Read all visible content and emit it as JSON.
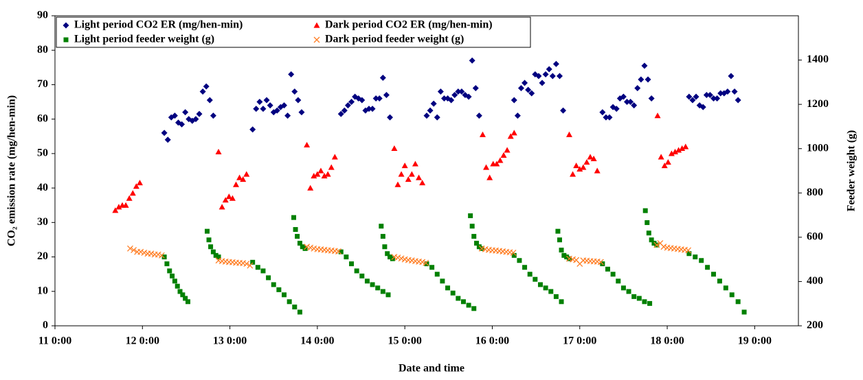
{
  "chart_data": {
    "type": "scatter",
    "xlabel": "Date and time",
    "ylabel": "CO₂ emission rate (mg/hen-min)",
    "y2label": "Feeder weight (g)",
    "xlim": [
      11,
      19.5
    ],
    "xticks": [
      {
        "value": 11,
        "label": "11 0:00"
      },
      {
        "value": 12,
        "label": "12 0:00"
      },
      {
        "value": 13,
        "label": "13 0:00"
      },
      {
        "value": 14,
        "label": "14 0:00"
      },
      {
        "value": 15,
        "label": "15 0:00"
      },
      {
        "value": 16,
        "label": "16 0:00"
      },
      {
        "value": 17,
        "label": "17 0:00"
      },
      {
        "value": 18,
        "label": "18 0:00"
      },
      {
        "value": 19,
        "label": "19 0:00"
      }
    ],
    "ylim": [
      0,
      90
    ],
    "yticks": [
      0,
      10,
      20,
      30,
      40,
      50,
      60,
      70,
      80,
      90
    ],
    "y2lim": [
      200,
      1600
    ],
    "y2ticks": [
      200,
      400,
      600,
      800,
      1000,
      1200,
      1400
    ],
    "grid": true,
    "legend": "upper left",
    "series": [
      {
        "name": "Light period CO2 ER (mg/hen-min)",
        "color": "#000080",
        "marker": "diamond",
        "x": [
          12.25,
          12.29,
          12.33,
          12.37,
          12.41,
          12.45,
          12.49,
          12.53,
          12.57,
          12.61,
          12.65,
          12.69,
          12.73,
          12.77,
          12.81,
          13.26,
          13.3,
          13.34,
          13.38,
          13.42,
          13.46,
          13.5,
          13.54,
          13.58,
          13.62,
          13.66,
          13.7,
          13.74,
          13.78,
          13.82,
          14.27,
          14.31,
          14.35,
          14.39,
          14.43,
          14.47,
          14.51,
          14.55,
          14.59,
          14.63,
          14.67,
          14.71,
          14.75,
          14.79,
          14.83,
          15.25,
          15.29,
          15.33,
          15.37,
          15.41,
          15.45,
          15.49,
          15.53,
          15.57,
          15.61,
          15.65,
          15.69,
          15.73,
          15.77,
          15.81,
          15.85,
          16.25,
          16.29,
          16.33,
          16.37,
          16.41,
          16.45,
          16.49,
          16.53,
          16.57,
          16.61,
          16.65,
          16.69,
          16.73,
          16.77,
          16.81,
          17.26,
          17.3,
          17.34,
          17.38,
          17.42,
          17.46,
          17.5,
          17.54,
          17.58,
          17.62,
          17.66,
          17.7,
          17.74,
          17.78,
          17.82,
          18.25,
          18.29,
          18.33,
          18.37,
          18.41,
          18.45,
          18.49,
          18.53,
          18.57,
          18.61,
          18.65,
          18.69,
          18.73,
          18.77,
          18.81
        ],
        "values": [
          56,
          54,
          60.5,
          61,
          59,
          58.5,
          62,
          60,
          59.5,
          60,
          61.5,
          68,
          69.5,
          65.5,
          61,
          57,
          63,
          65,
          63,
          65.5,
          64,
          62,
          62.5,
          63.5,
          64,
          61,
          73,
          68,
          65.5,
          62,
          61.5,
          62.5,
          64,
          65,
          66.5,
          66,
          65.5,
          62.5,
          63,
          63,
          66,
          66,
          72,
          67,
          60.5,
          61,
          62.5,
          64.5,
          60.5,
          68,
          66,
          66,
          65.5,
          67,
          68,
          68,
          67,
          66.5,
          77,
          69,
          61,
          65.5,
          61,
          69,
          70.5,
          68.5,
          67.5,
          73,
          72.5,
          70.5,
          73,
          74.5,
          72.5,
          76,
          72.5,
          62.5,
          62,
          60.5,
          60.5,
          63.5,
          63,
          66,
          66.5,
          65,
          65,
          64,
          69,
          71.5,
          75.5,
          71.5,
          66,
          66.5,
          65.5,
          66.5,
          64,
          63.5,
          67,
          67,
          66,
          66,
          67.5,
          67.5,
          68,
          72.5,
          68,
          65.5
        ]
      },
      {
        "name": "Dark period CO2 ER (mg/hen-min)",
        "color": "#ff0000",
        "marker": "triangle",
        "x": [
          11.69,
          11.73,
          11.77,
          11.81,
          11.85,
          11.89,
          11.93,
          11.97,
          12.87,
          12.91,
          12.95,
          12.99,
          13.03,
          13.07,
          13.11,
          13.15,
          13.19,
          13.88,
          13.92,
          13.96,
          14.0,
          14.04,
          14.08,
          14.12,
          14.16,
          14.2,
          14.88,
          14.92,
          14.96,
          15.0,
          15.04,
          15.08,
          15.12,
          15.16,
          15.2,
          15.89,
          15.93,
          15.97,
          16.01,
          16.05,
          16.09,
          16.13,
          16.17,
          16.21,
          16.25,
          16.88,
          16.92,
          16.96,
          17.0,
          17.04,
          17.08,
          17.12,
          17.16,
          17.2,
          17.89,
          17.93,
          17.97,
          18.01,
          18.05,
          18.09,
          18.13,
          18.17,
          18.21
        ],
        "values": [
          33.5,
          34.5,
          35,
          35,
          37,
          38.5,
          40.5,
          41.5,
          50.5,
          34.5,
          36.5,
          37.5,
          37,
          41,
          43,
          42.5,
          44,
          52.5,
          40,
          43.5,
          44,
          45,
          43.5,
          44,
          46,
          49,
          51.5,
          41,
          44,
          46.5,
          42.5,
          44,
          47,
          43,
          41.5,
          55.5,
          46,
          43,
          47,
          47,
          48,
          49.5,
          51,
          55,
          56,
          55.5,
          44,
          46.5,
          45.5,
          46,
          47.5,
          49,
          48.5,
          45,
          61,
          49,
          46.5,
          47.5,
          50,
          50.5,
          51,
          51.5,
          52
        ]
      },
      {
        "name": "Light period feeder weight (g)",
        "color": "#008000",
        "marker": "square",
        "axis": "y2",
        "x": [
          12.25,
          12.28,
          12.31,
          12.34,
          12.37,
          12.4,
          12.43,
          12.46,
          12.49,
          12.52,
          12.74,
          12.76,
          12.78,
          12.81,
          12.84,
          12.87,
          13.26,
          13.32,
          13.38,
          13.44,
          13.5,
          13.56,
          13.62,
          13.68,
          13.74,
          13.8,
          13.73,
          13.75,
          13.77,
          13.8,
          13.83,
          13.86,
          14.27,
          14.33,
          14.39,
          14.45,
          14.51,
          14.57,
          14.63,
          14.69,
          14.75,
          14.81,
          14.73,
          14.75,
          14.77,
          14.8,
          14.83,
          14.86,
          15.25,
          15.31,
          15.37,
          15.43,
          15.49,
          15.55,
          15.61,
          15.67,
          15.73,
          15.79,
          15.75,
          15.77,
          15.79,
          15.82,
          15.85,
          15.88,
          16.25,
          16.31,
          16.37,
          16.43,
          16.49,
          16.55,
          16.61,
          16.67,
          16.73,
          16.79,
          16.75,
          16.77,
          16.79,
          16.82,
          16.85,
          16.88,
          17.26,
          17.32,
          17.38,
          17.44,
          17.5,
          17.56,
          17.62,
          17.68,
          17.74,
          17.8,
          17.75,
          17.77,
          17.79,
          17.82,
          17.85,
          17.88,
          18.25,
          18.32,
          18.39,
          18.46,
          18.53,
          18.6,
          18.67,
          18.74,
          18.81,
          18.88
        ],
        "values": [
          511,
          480,
          448,
          425,
          402,
          379,
          355,
          340,
          324,
          309,
          627,
          588,
          557,
          534,
          518,
          511,
          487,
          464,
          448,
          417,
          386,
          363,
          340,
          309,
          285,
          262,
          689,
          635,
          604,
          573,
          557,
          549,
          534,
          511,
          480,
          448,
          425,
          402,
          386,
          371,
          355,
          340,
          650,
          604,
          557,
          526,
          511,
          503,
          480,
          464,
          433,
          402,
          371,
          348,
          324,
          309,
          293,
          278,
          697,
          650,
          604,
          573,
          557,
          549,
          518,
          495,
          464,
          433,
          410,
          386,
          371,
          355,
          332,
          309,
          627,
          588,
          542,
          518,
          511,
          503,
          480,
          456,
          433,
          402,
          371,
          355,
          332,
          324,
          309,
          301,
          720,
          666,
          619,
          588,
          573,
          565,
          526,
          511,
          495,
          464,
          433,
          402,
          371,
          340,
          309,
          262
        ]
      },
      {
        "name": "Dark period feeder weight (g)",
        "color": "#ff7f27",
        "marker": "x",
        "axis": "y2",
        "x": [
          11.86,
          11.9,
          11.94,
          11.98,
          12.02,
          12.06,
          12.1,
          12.14,
          12.18,
          12.22,
          12.87,
          12.91,
          12.95,
          12.99,
          13.03,
          13.07,
          13.11,
          13.15,
          13.19,
          13.23,
          13.88,
          13.92,
          13.96,
          14.0,
          14.04,
          14.08,
          14.12,
          14.16,
          14.2,
          14.24,
          14.88,
          14.92,
          14.96,
          15.0,
          15.04,
          15.08,
          15.12,
          15.16,
          15.2,
          15.24,
          15.88,
          15.92,
          15.96,
          16.0,
          16.04,
          16.08,
          16.12,
          16.16,
          16.2,
          16.24,
          16.88,
          16.92,
          16.96,
          17.0,
          17.04,
          17.08,
          17.12,
          17.16,
          17.2,
          17.24,
          17.88,
          17.92,
          17.96,
          18.0,
          18.04,
          18.08,
          18.12,
          18.16,
          18.2,
          18.24
        ],
        "values": [
          549,
          542,
          534,
          534,
          530,
          526,
          526,
          522,
          522,
          518,
          495,
          492,
          490,
          488,
          487,
          485,
          484,
          483,
          480,
          472,
          557,
          553,
          549,
          546,
          545,
          543,
          541,
          540,
          538,
          536,
          511,
          508,
          504,
          500,
          497,
          495,
          492,
          490,
          488,
          484,
          549,
          546,
          543,
          541,
          540,
          538,
          536,
          534,
          532,
          530,
          503,
          500,
          497,
          480,
          495,
          494,
          492,
          491,
          490,
          488,
          565,
          573,
          557,
          553,
          551,
          549,
          547,
          545,
          543,
          541
        ]
      }
    ]
  }
}
